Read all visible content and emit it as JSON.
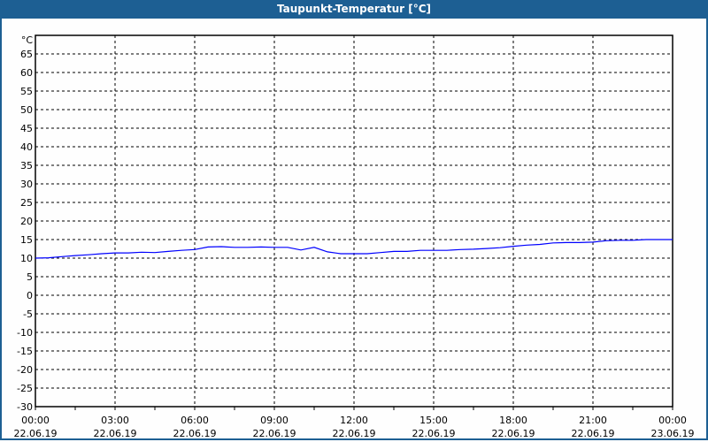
{
  "window": {
    "title": "Taupunkt-Temperatur [°C]"
  },
  "chart_data": {
    "type": "line",
    "title": "Taupunkt-Temperatur [°C]",
    "ylabel": "°C",
    "ylim": [
      -30,
      70
    ],
    "yticks": [
      65,
      60,
      55,
      50,
      45,
      40,
      35,
      30,
      25,
      20,
      15,
      10,
      5,
      0,
      -5,
      -10,
      -15,
      -20,
      -25,
      -30
    ],
    "xlim": [
      "22.06.19 00:00",
      "23.06.19 00:00"
    ],
    "xticks": [
      {
        "time": "00:00",
        "date": "22.06.19"
      },
      {
        "time": "03:00",
        "date": "22.06.19"
      },
      {
        "time": "06:00",
        "date": "22.06.19"
      },
      {
        "time": "09:00",
        "date": "22.06.19"
      },
      {
        "time": "12:00",
        "date": "22.06.19"
      },
      {
        "time": "15:00",
        "date": "22.06.19"
      },
      {
        "time": "18:00",
        "date": "22.06.19"
      },
      {
        "time": "21:00",
        "date": "22.06.19"
      },
      {
        "time": "00:00",
        "date": "23.06.19"
      }
    ],
    "grid": true,
    "line_color": "#0000ff",
    "series": [
      {
        "x": [
          "00:00",
          "00:30",
          "01:00",
          "01:30",
          "02:00",
          "02:30",
          "03:00",
          "03:30",
          "04:00",
          "04:30",
          "05:00",
          "05:30",
          "06:00",
          "06:30",
          "07:00",
          "07:30",
          "08:00",
          "08:30",
          "09:00",
          "09:30",
          "10:00",
          "10:30",
          "11:00",
          "11:30",
          "12:00",
          "12:30",
          "13:00",
          "13:30",
          "14:00",
          "14:30",
          "15:00",
          "15:30",
          "16:00",
          "16:30",
          "17:00",
          "17:30",
          "18:00",
          "18:30",
          "19:00",
          "19:30",
          "20:00",
          "20:30",
          "21:00",
          "21:30",
          "22:00",
          "22:30",
          "23:00",
          "23:30",
          "24:00"
        ],
        "values": [
          10.0,
          10.1,
          10.4,
          10.7,
          10.9,
          11.2,
          11.4,
          11.4,
          11.6,
          11.5,
          11.8,
          12.1,
          12.3,
          13.0,
          13.1,
          12.9,
          12.9,
          13.0,
          12.9,
          12.9,
          12.2,
          12.9,
          11.7,
          11.2,
          11.2,
          11.2,
          11.5,
          11.8,
          11.8,
          12.1,
          12.1,
          12.1,
          12.3,
          12.4,
          12.6,
          12.8,
          13.2,
          13.5,
          13.7,
          14.1,
          14.2,
          14.2,
          14.3,
          14.7,
          14.8,
          14.8,
          15.0,
          15.0,
          15.0
        ]
      }
    ]
  }
}
